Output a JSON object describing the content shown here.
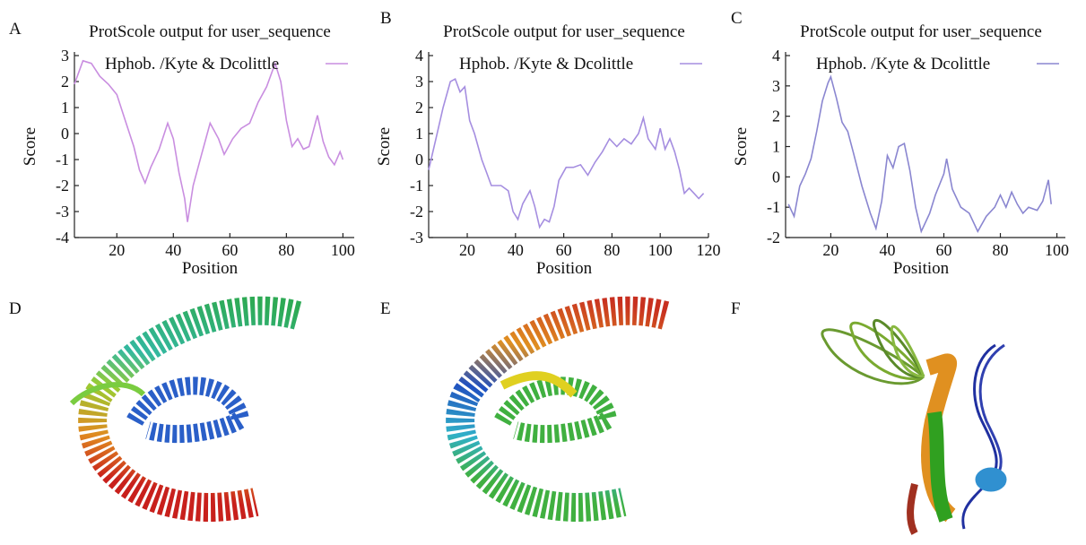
{
  "panel_labels": [
    "A",
    "B",
    "C",
    "D",
    "E",
    "F"
  ],
  "chart_data": [
    {
      "type": "line",
      "title": "ProtScole output for user_sequence",
      "x_label": "Position",
      "y_label": "Score",
      "xlim": [
        5,
        104
      ],
      "xticks": [
        20,
        40,
        60,
        80,
        100
      ],
      "ylim": [
        -4,
        3
      ],
      "yticks": [
        -4,
        -3,
        -2,
        -1,
        0,
        1,
        2,
        3
      ],
      "x": [
        5,
        8,
        11,
        14,
        17,
        20,
        23,
        26,
        28,
        30,
        32,
        35,
        38,
        40,
        42,
        44,
        45,
        47,
        50,
        53,
        56,
        58,
        61,
        64,
        67,
        70,
        73,
        76,
        78,
        80,
        82,
        84,
        86,
        88,
        91,
        93,
        95,
        97,
        99,
        100
      ],
      "series": [
        {
          "name": "Hphob. /Kyte & Dcolittle",
          "color": "#c98ee0",
          "values": [
            1.9,
            2.8,
            2.7,
            2.2,
            1.9,
            1.5,
            0.5,
            -0.5,
            -1.4,
            -1.9,
            -1.3,
            -0.6,
            0.4,
            -0.2,
            -1.5,
            -2.5,
            -3.4,
            -2.0,
            -0.8,
            0.4,
            -0.2,
            -0.8,
            -0.2,
            0.2,
            0.4,
            1.2,
            1.8,
            2.7,
            2.0,
            0.5,
            -0.5,
            -0.2,
            -0.6,
            -0.5,
            0.7,
            -0.3,
            -0.9,
            -1.2,
            -0.7,
            -1.0
          ]
        }
      ]
    },
    {
      "type": "line",
      "title": "ProtScole output for user_sequence",
      "x_label": "Position",
      "y_label": "Score",
      "xlim": [
        4,
        120
      ],
      "xticks": [
        20,
        40,
        60,
        80,
        100,
        120
      ],
      "ylim": [
        -3,
        4
      ],
      "yticks": [
        -3,
        -2,
        -1,
        0,
        1,
        2,
        3,
        4
      ],
      "x": [
        4,
        7,
        10,
        13,
        15,
        17,
        19,
        21,
        23,
        26,
        28,
        30,
        34,
        37,
        39,
        41,
        43,
        46,
        48,
        50,
        52,
        54,
        56,
        58,
        61,
        64,
        67,
        70,
        73,
        76,
        79,
        82,
        85,
        88,
        91,
        93,
        95,
        98,
        100,
        102,
        104,
        106,
        108,
        110,
        112,
        114,
        116,
        118
      ],
      "series": [
        {
          "name": "Hphob. /Kyte & Dcolittle",
          "color": "#a58ee0",
          "values": [
            -0.4,
            0.8,
            2.0,
            3.0,
            3.1,
            2.6,
            2.8,
            1.5,
            1.0,
            0.0,
            -0.5,
            -1.0,
            -1.0,
            -1.2,
            -2.0,
            -2.3,
            -1.7,
            -1.2,
            -1.8,
            -2.6,
            -2.3,
            -2.4,
            -1.8,
            -0.8,
            -0.3,
            -0.3,
            -0.2,
            -0.6,
            -0.1,
            0.3,
            0.8,
            0.5,
            0.8,
            0.6,
            1.0,
            1.6,
            0.8,
            0.4,
            1.2,
            0.4,
            0.8,
            0.3,
            -0.4,
            -1.3,
            -1.1,
            -1.3,
            -1.5,
            -1.3
          ]
        }
      ]
    },
    {
      "type": "line",
      "title": "ProtScole output for user_sequence",
      "x_label": "Position",
      "y_label": "Score",
      "xlim": [
        4,
        103
      ],
      "xticks": [
        20,
        40,
        60,
        80,
        100
      ],
      "ylim": [
        -2,
        4
      ],
      "yticks": [
        -2,
        -1,
        0,
        1,
        2,
        3,
        4
      ],
      "x": [
        5,
        7,
        9,
        11,
        13,
        15,
        17,
        19,
        20,
        22,
        24,
        26,
        28,
        31,
        34,
        36,
        38,
        40,
        42,
        44,
        46,
        48,
        50,
        52,
        55,
        57,
        60,
        61,
        63,
        66,
        69,
        72,
        75,
        78,
        80,
        82,
        84,
        86,
        88,
        90,
        93,
        95,
        97,
        98
      ],
      "series": [
        {
          "name": "Hphob. /Kyte & Dcolittle",
          "color": "#8a86d0",
          "values": [
            -0.9,
            -1.3,
            -0.3,
            0.1,
            0.6,
            1.5,
            2.5,
            3.1,
            3.3,
            2.6,
            1.8,
            1.5,
            0.8,
            -0.3,
            -1.2,
            -1.7,
            -0.8,
            0.7,
            0.3,
            1.0,
            1.1,
            0.2,
            -1.0,
            -1.8,
            -1.2,
            -0.6,
            0.1,
            0.6,
            -0.4,
            -1.0,
            -1.2,
            -1.8,
            -1.3,
            -1.0,
            -0.6,
            -1.0,
            -0.5,
            -0.9,
            -1.2,
            -1.0,
            -1.1,
            -0.8,
            -0.1,
            -0.9
          ]
        }
      ]
    }
  ]
}
